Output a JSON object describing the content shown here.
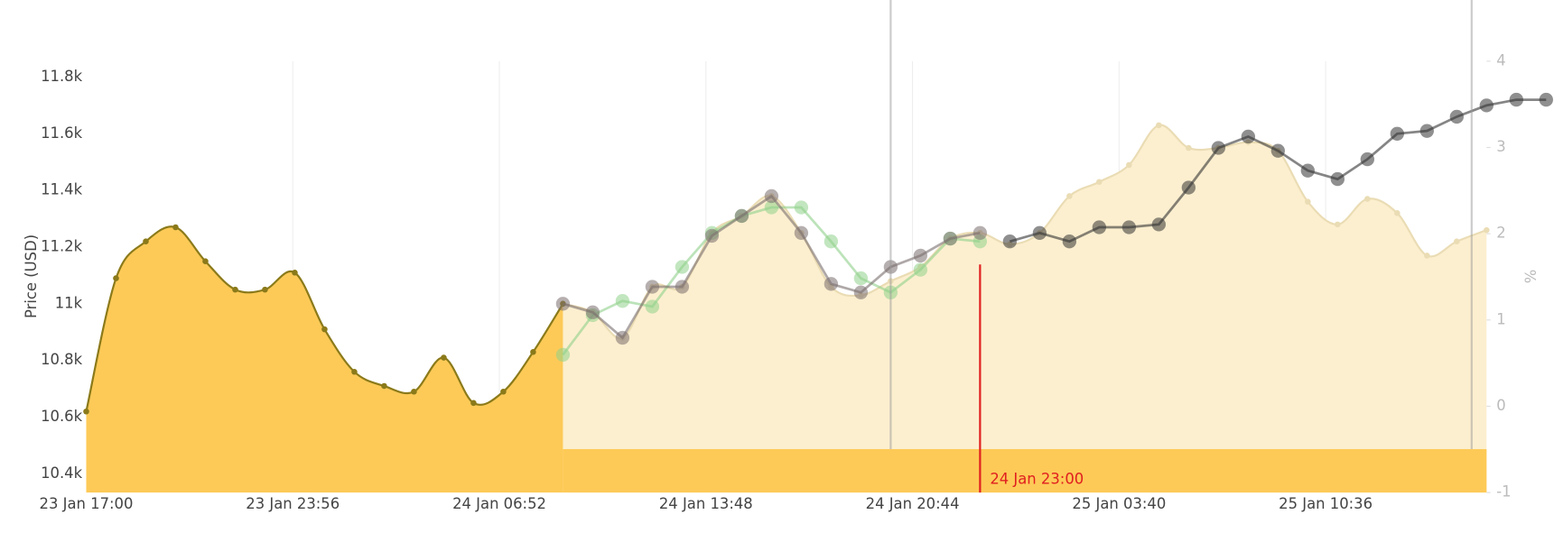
{
  "chart_data": {
    "type": "line",
    "y_label": "Price (USD)",
    "y2_label": "%",
    "xlim": [
      "23 Jan 17:00",
      "25 Jan 16:00"
    ],
    "xticks": [
      "23 Jan 17:00",
      "23 Jan 23:56",
      "24 Jan 06:52",
      "24 Jan 13:48",
      "24 Jan 20:44",
      "25 Jan 03:40",
      "25 Jan 10:36"
    ],
    "ylim": [
      10334,
      11856
    ],
    "yticks": [
      {
        "value": 10400,
        "label": "10.4k"
      },
      {
        "value": 10600,
        "label": "10.6k"
      },
      {
        "value": 10800,
        "label": "10.8k"
      },
      {
        "value": 11000,
        "label": "11k"
      },
      {
        "value": 11200,
        "label": "11.2k"
      },
      {
        "value": 11400,
        "label": "11.4k"
      },
      {
        "value": 11600,
        "label": "11.6k"
      },
      {
        "value": 11800,
        "label": "11.8k"
      }
    ],
    "y2lim": [
      -1,
      4
    ],
    "y2ticks": [
      -1,
      0,
      1,
      2,
      3,
      4
    ],
    "grid": true,
    "series": [
      {
        "color": "#fcefcf",
        "line_color": "#eadcb4",
        "fill": true,
        "smooth": true,
        "markers": "small",
        "x": [
          "24 Jan 09:00",
          "24 Jan 10:00",
          "24 Jan 11:00",
          "24 Jan 12:00",
          "24 Jan 13:00",
          "24 Jan 14:00",
          "24 Jan 15:00",
          "24 Jan 16:00",
          "24 Jan 17:00",
          "24 Jan 18:00",
          "24 Jan 19:00",
          "24 Jan 20:00",
          "24 Jan 21:00",
          "24 Jan 22:00",
          "24 Jan 23:00",
          "25 Jan 00:00",
          "25 Jan 01:00",
          "25 Jan 02:00",
          "25 Jan 03:00",
          "25 Jan 04:00",
          "25 Jan 05:00",
          "25 Jan 06:00",
          "25 Jan 07:00",
          "25 Jan 08:00",
          "25 Jan 09:00",
          "25 Jan 10:00",
          "25 Jan 11:00",
          "25 Jan 12:00",
          "25 Jan 13:00",
          "25 Jan 14:00",
          "25 Jan 15:00",
          "25 Jan 16:00"
        ],
        "values": [
          11000,
          10970,
          10880,
          11060,
          11060,
          11250,
          11310,
          11380,
          11250,
          11060,
          11030,
          11080,
          11130,
          11230,
          11250,
          11210,
          11250,
          11380,
          11430,
          11490,
          11630,
          11550,
          11550,
          11570,
          11540,
          11360,
          11280,
          11370,
          11320,
          11170,
          11220,
          11260
        ]
      },
      {
        "color": "#fdca57",
        "line_color": "#8b7a1a",
        "fill": true,
        "smooth": true,
        "markers": "small",
        "x": [
          "23 Jan 17:00",
          "23 Jan 18:00",
          "23 Jan 19:00",
          "23 Jan 20:00",
          "23 Jan 21:00",
          "23 Jan 22:00",
          "23 Jan 23:00",
          "24 Jan 00:00",
          "24 Jan 01:00",
          "24 Jan 02:00",
          "24 Jan 03:00",
          "24 Jan 04:00",
          "24 Jan 05:00",
          "24 Jan 06:00",
          "24 Jan 07:00",
          "24 Jan 08:00",
          "24 Jan 09:00"
        ],
        "values": [
          10620,
          11090,
          11220,
          11270,
          11150,
          11050,
          11050,
          11110,
          10910,
          10760,
          10710,
          10690,
          10810,
          10650,
          10690,
          10830,
          11000
        ]
      },
      {
        "color": "#8fd18a",
        "line_color": "#8fd18a",
        "fill": false,
        "smooth": false,
        "markers": "large",
        "x": [
          "24 Jan 09:00",
          "24 Jan 10:00",
          "24 Jan 11:00",
          "24 Jan 12:00",
          "24 Jan 13:00",
          "24 Jan 14:00",
          "24 Jan 15:00",
          "24 Jan 16:00",
          "24 Jan 17:00",
          "24 Jan 18:00",
          "24 Jan 19:00",
          "24 Jan 20:00",
          "24 Jan 21:00",
          "24 Jan 22:00",
          "24 Jan 23:00"
        ],
        "values": [
          10820,
          10960,
          11010,
          10990,
          11130,
          11250,
          11310,
          11340,
          11340,
          11220,
          11090,
          11040,
          11120,
          11230,
          11220
        ]
      },
      {
        "color": "#7a6e6e",
        "line_color": "#7a6e6e",
        "fill": false,
        "smooth": false,
        "markers": "large",
        "x": [
          "24 Jan 09:00",
          "24 Jan 10:00",
          "24 Jan 11:00",
          "24 Jan 12:00",
          "24 Jan 13:00",
          "24 Jan 14:00",
          "24 Jan 15:00",
          "24 Jan 16:00",
          "24 Jan 17:00",
          "24 Jan 18:00",
          "24 Jan 19:00",
          "24 Jan 20:00",
          "24 Jan 21:00",
          "24 Jan 22:00",
          "24 Jan 23:00"
        ],
        "values": [
          11000,
          10970,
          10880,
          11060,
          11060,
          11240,
          11310,
          11380,
          11250,
          11070,
          11040,
          11130,
          11170,
          11230,
          11250
        ]
      },
      {
        "color": "#333333",
        "line_color": "#333333",
        "fill": false,
        "smooth": false,
        "markers": "large",
        "x": [
          "25 Jan 00:00",
          "25 Jan 01:00",
          "25 Jan 02:00",
          "25 Jan 03:00",
          "25 Jan 04:00",
          "25 Jan 05:00",
          "25 Jan 06:00",
          "25 Jan 07:00",
          "25 Jan 08:00",
          "25 Jan 09:00",
          "25 Jan 10:00",
          "25 Jan 11:00",
          "25 Jan 12:00",
          "25 Jan 13:00",
          "25 Jan 14:00",
          "25 Jan 15:00",
          "25 Jan 16:00",
          "25 Jan 17:00",
          "25 Jan 18:00"
        ],
        "values": [
          11220,
          11250,
          11220,
          11270,
          11270,
          11280,
          11410,
          11550,
          11590,
          11540,
          11470,
          11440,
          11510,
          11600,
          11610,
          11660,
          11700,
          11720,
          11720
        ]
      }
    ],
    "vlines": [
      "24 Jan 20:00",
      "25 Jan 15:30"
    ],
    "annotation": {
      "x": "24 Jan 23:00",
      "color": "#e02020"
    }
  }
}
